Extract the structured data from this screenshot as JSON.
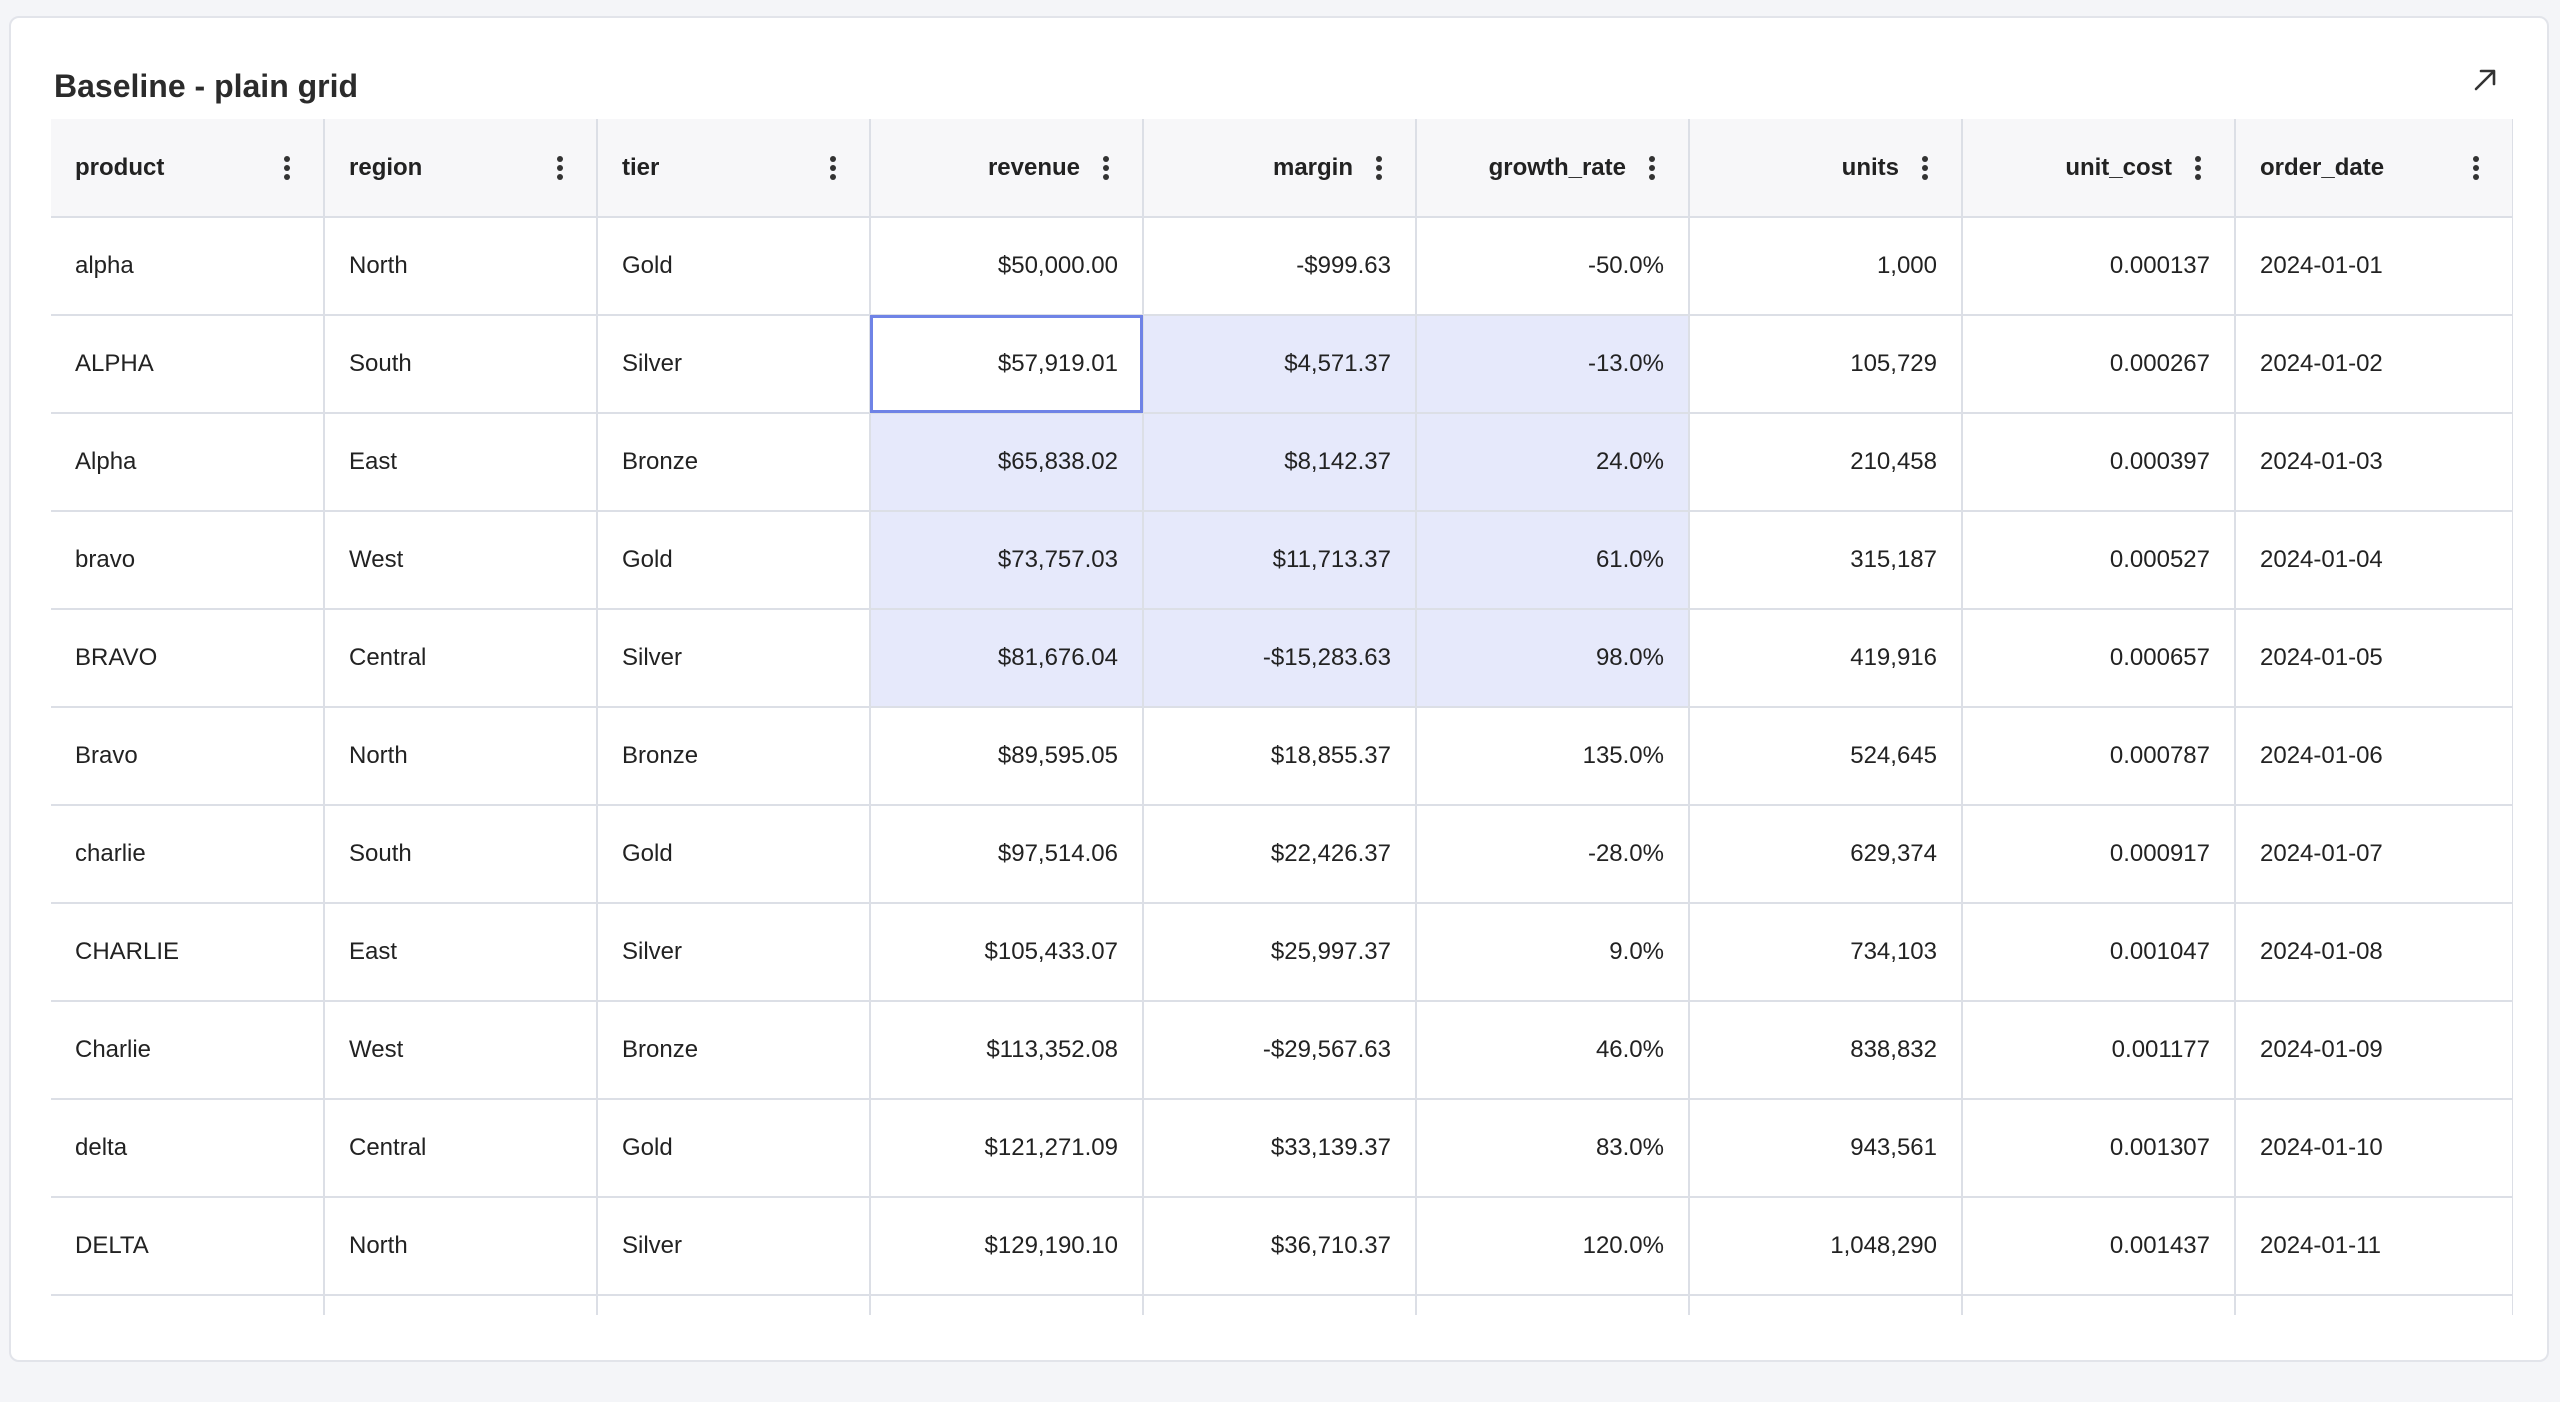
{
  "panel": {
    "title": "Baseline - plain grid"
  },
  "columns": [
    {
      "key": "product",
      "label": "product",
      "align": "left"
    },
    {
      "key": "region",
      "label": "region",
      "align": "left"
    },
    {
      "key": "tier",
      "label": "tier",
      "align": "left"
    },
    {
      "key": "revenue",
      "label": "revenue",
      "align": "right"
    },
    {
      "key": "margin",
      "label": "margin",
      "align": "right"
    },
    {
      "key": "growth_rate",
      "label": "growth_rate",
      "align": "right"
    },
    {
      "key": "units",
      "label": "units",
      "align": "right"
    },
    {
      "key": "unit_cost",
      "label": "unit_cost",
      "align": "right"
    },
    {
      "key": "order_date",
      "label": "order_date",
      "align": "left"
    }
  ],
  "rows": [
    [
      "alpha",
      "North",
      "Gold",
      "$50,000.00",
      "-$999.63",
      "-50.0%",
      "1,000",
      "0.000137",
      "2024-01-01"
    ],
    [
      "ALPHA",
      "South",
      "Silver",
      "$57,919.01",
      "$4,571.37",
      "-13.0%",
      "105,729",
      "0.000267",
      "2024-01-02"
    ],
    [
      "Alpha",
      "East",
      "Bronze",
      "$65,838.02",
      "$8,142.37",
      "24.0%",
      "210,458",
      "0.000397",
      "2024-01-03"
    ],
    [
      "bravo",
      "West",
      "Gold",
      "$73,757.03",
      "$11,713.37",
      "61.0%",
      "315,187",
      "0.000527",
      "2024-01-04"
    ],
    [
      "BRAVO",
      "Central",
      "Silver",
      "$81,676.04",
      "-$15,283.63",
      "98.0%",
      "419,916",
      "0.000657",
      "2024-01-05"
    ],
    [
      "Bravo",
      "North",
      "Bronze",
      "$89,595.05",
      "$18,855.37",
      "135.0%",
      "524,645",
      "0.000787",
      "2024-01-06"
    ],
    [
      "charlie",
      "South",
      "Gold",
      "$97,514.06",
      "$22,426.37",
      "-28.0%",
      "629,374",
      "0.000917",
      "2024-01-07"
    ],
    [
      "CHARLIE",
      "East",
      "Silver",
      "$105,433.07",
      "$25,997.37",
      "9.0%",
      "734,103",
      "0.001047",
      "2024-01-08"
    ],
    [
      "Charlie",
      "West",
      "Bronze",
      "$113,352.08",
      "-$29,567.63",
      "46.0%",
      "838,832",
      "0.001177",
      "2024-01-09"
    ],
    [
      "delta",
      "Central",
      "Gold",
      "$121,271.09",
      "$33,139.37",
      "83.0%",
      "943,561",
      "0.001307",
      "2024-01-10"
    ],
    [
      "DELTA",
      "North",
      "Silver",
      "$129,190.10",
      "$36,710.37",
      "120.0%",
      "1,048,290",
      "0.001437",
      "2024-01-11"
    ]
  ],
  "selection": {
    "start_row": 1,
    "end_row": 4,
    "start_col": 3,
    "end_col": 5,
    "active_row": 1,
    "active_col": 3
  },
  "icons": {
    "expand": "expand-arrow-icon",
    "column_menu": "kebab-menu-icon"
  },
  "colors": {
    "selection_fill": "#e6e9fb",
    "active_cell_border": "#6f83e6"
  }
}
